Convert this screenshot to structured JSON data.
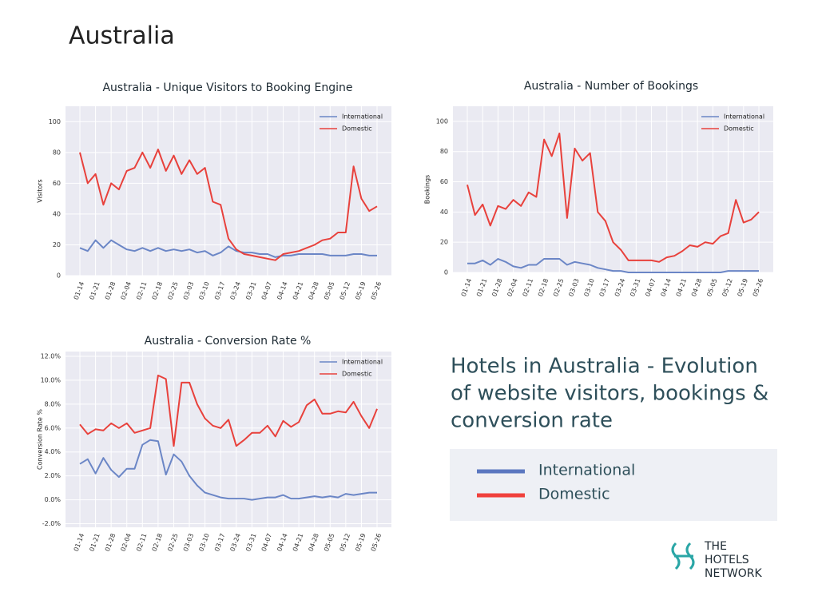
{
  "page": {
    "title": "Australia",
    "caption": [
      "Hotels in Australia - Evolution",
      "of website visitors, bookings &",
      "conversion rate"
    ],
    "logo": [
      "THE",
      "HOTELS",
      "NETWORK"
    ]
  },
  "chart_data": [
    {
      "type": "line",
      "title": "Australia - Unique Visitors to Booking Engine",
      "ylabel": "Visitors",
      "categories": [
        "01-14",
        null,
        "01-21",
        null,
        "01-28",
        null,
        "02-04",
        null,
        "02-11",
        null,
        "02-18",
        null,
        "02-25",
        null,
        "03-03",
        null,
        "03-10",
        null,
        "03-17",
        null,
        "03-24",
        null,
        "03-31",
        null,
        "04-07",
        null,
        "04-14",
        null,
        "04-21",
        null,
        "04-28",
        null,
        "05-05",
        null,
        "05-12",
        null,
        "05-19",
        null,
        "05-26"
      ],
      "series": [
        {
          "name": "International",
          "color": "#6b86c6",
          "values": [
            18,
            16,
            23,
            18,
            23,
            20,
            17,
            16,
            18,
            16,
            18,
            16,
            17,
            16,
            17,
            15,
            16,
            13,
            15,
            19,
            16,
            15,
            15,
            14,
            14,
            12,
            13,
            13,
            14,
            14,
            14,
            14,
            13,
            13,
            13,
            14,
            14,
            13,
            13
          ]
        },
        {
          "name": "Domestic",
          "color": "#e8413c",
          "values": [
            80,
            60,
            66,
            46,
            60,
            56,
            68,
            70,
            80,
            70,
            82,
            68,
            78,
            66,
            75,
            66,
            70,
            48,
            46,
            24,
            17,
            14,
            13,
            12,
            11,
            10,
            14,
            15,
            16,
            18,
            20,
            23,
            24,
            28,
            28,
            71,
            50,
            42,
            45
          ]
        }
      ],
      "ylim": [
        0,
        110
      ],
      "yticks": [
        0,
        20,
        40,
        60,
        80,
        100
      ],
      "grid": true,
      "legend": "upper right"
    },
    {
      "type": "line",
      "title": "Australia - Number of Bookings",
      "ylabel": "Bookings",
      "categories": [
        "01-14",
        null,
        "01-21",
        null,
        "01-28",
        null,
        "02-04",
        null,
        "02-11",
        null,
        "02-18",
        null,
        "02-25",
        null,
        "03-03",
        null,
        "03-10",
        null,
        "03-17",
        null,
        "03-24",
        null,
        "03-31",
        null,
        "04-07",
        null,
        "04-14",
        null,
        "04-21",
        null,
        "04-28",
        null,
        "05-05",
        null,
        "05-12",
        null,
        "05-19",
        null,
        "05-26"
      ],
      "series": [
        {
          "name": "International",
          "color": "#6b86c6",
          "values": [
            6,
            6,
            8,
            5,
            9,
            7,
            4,
            3,
            5,
            5,
            9,
            9,
            9,
            5,
            7,
            6,
            5,
            3,
            2,
            1,
            1,
            0,
            0,
            0,
            0,
            0,
            0,
            0,
            0,
            0,
            0,
            0,
            0,
            0,
            1,
            1,
            1,
            1,
            1
          ]
        },
        {
          "name": "Domestic",
          "color": "#e8413c",
          "values": [
            58,
            38,
            45,
            31,
            44,
            42,
            48,
            44,
            53,
            50,
            88,
            77,
            92,
            36,
            82,
            74,
            79,
            40,
            34,
            20,
            15,
            8,
            8,
            8,
            8,
            7,
            10,
            11,
            14,
            18,
            17,
            20,
            19,
            24,
            26,
            48,
            33,
            35,
            40
          ]
        }
      ],
      "ylim": [
        0,
        110
      ],
      "yticks": [
        0,
        20,
        40,
        60,
        80,
        100
      ],
      "grid": true,
      "legend": "upper right"
    },
    {
      "type": "line",
      "title": "Australia - Conversion Rate %",
      "ylabel": "Conversion Rate %",
      "categories": [
        "01-14",
        null,
        "01-21",
        null,
        "01-28",
        null,
        "02-04",
        null,
        "02-11",
        null,
        "02-18",
        null,
        "02-25",
        null,
        "03-03",
        null,
        "03-10",
        null,
        "03-17",
        null,
        "03-24",
        null,
        "03-31",
        null,
        "04-07",
        null,
        "04-14",
        null,
        "04-21",
        null,
        "04-28",
        null,
        "05-05",
        null,
        "05-12",
        null,
        "05-19",
        null,
        "05-26"
      ],
      "series": [
        {
          "name": "International",
          "color": "#6b86c6",
          "values": [
            3.0,
            3.4,
            2.2,
            3.5,
            2.5,
            1.9,
            2.6,
            2.6,
            4.6,
            5.0,
            4.9,
            2.1,
            3.8,
            3.2,
            2.0,
            1.2,
            0.6,
            0.4,
            0.2,
            0.1,
            0.1,
            0.1,
            0.0,
            0.1,
            0.2,
            0.2,
            0.4,
            0.1,
            0.1,
            0.2,
            0.3,
            0.2,
            0.3,
            0.2,
            0.5,
            0.4,
            0.5,
            0.6,
            0.6
          ]
        },
        {
          "name": "Domestic",
          "color": "#e8413c",
          "values": [
            6.3,
            5.5,
            5.9,
            5.8,
            6.4,
            6.0,
            6.4,
            5.6,
            5.8,
            6.0,
            10.4,
            10.1,
            4.5,
            9.8,
            9.8,
            8.0,
            6.8,
            6.2,
            6.0,
            6.7,
            4.5,
            5.0,
            5.6,
            5.6,
            6.2,
            5.3,
            6.6,
            6.1,
            6.5,
            7.9,
            8.4,
            7.2,
            7.2,
            7.4,
            7.3,
            8.2,
            7.0,
            6.0,
            7.6
          ]
        }
      ],
      "ylim": [
        -2.3,
        12.4
      ],
      "yticks": [
        {
          "value": -2,
          "label": "-2.0%"
        },
        {
          "value": 0,
          "label": "0.0%"
        },
        {
          "value": 2,
          "label": "2.0%"
        },
        {
          "value": 4,
          "label": "4.0%"
        },
        {
          "value": 6,
          "label": "6.0%"
        },
        {
          "value": 8,
          "label": "8.0%"
        },
        {
          "value": 10,
          "label": "10.0%"
        },
        {
          "value": 12,
          "label": "12.0%"
        }
      ],
      "grid": true,
      "legend": "upper right"
    }
  ]
}
